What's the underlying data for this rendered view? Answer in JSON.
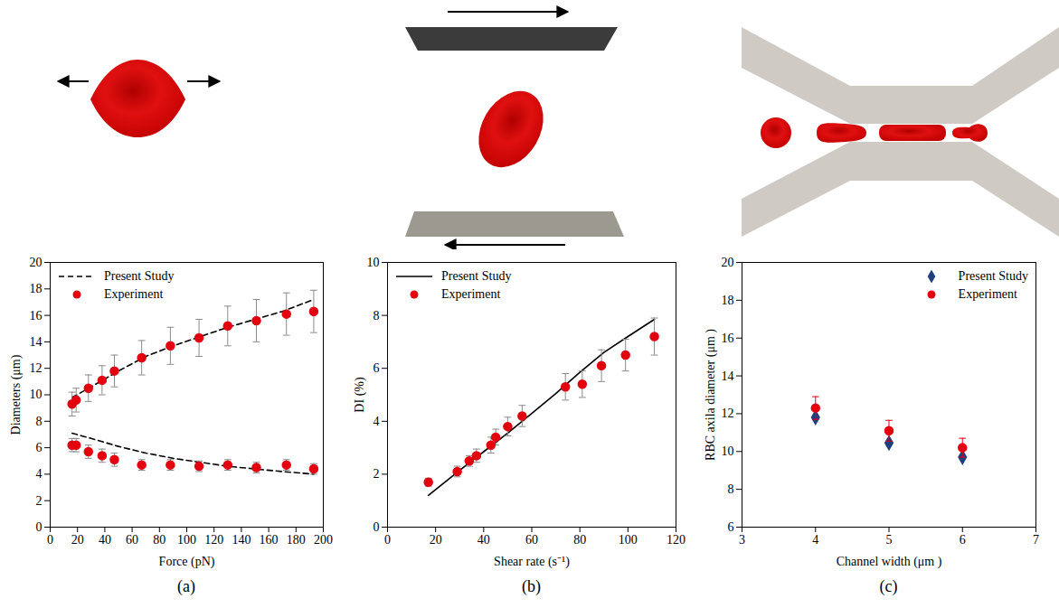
{
  "chart_data": [
    {
      "type": "scatter",
      "panel_label": "(a)",
      "x_label": "Force (pN)",
      "y_label": "Diameters (μm)",
      "xlim": [
        0,
        200
      ],
      "xticks": [
        0,
        20,
        40,
        60,
        80,
        100,
        120,
        140,
        160,
        180,
        200
      ],
      "ylim": [
        0,
        20
      ],
      "yticks": [
        0,
        2,
        4,
        6,
        8,
        10,
        12,
        14,
        16,
        18,
        20
      ],
      "grid": false,
      "legend": "upper left",
      "series": [
        {
          "name": "Present Study",
          "type": "line",
          "line_style": "dashed",
          "color": "#000000",
          "x": [
            16,
            30,
            50,
            70,
            90,
            110,
            130,
            150,
            170,
            193,
            null,
            16,
            30,
            50,
            70,
            90,
            110,
            130,
            150,
            170,
            193
          ],
          "values": [
            9.8,
            10.6,
            11.8,
            12.9,
            13.7,
            14.4,
            15.1,
            15.7,
            16.3,
            17.2,
            null,
            7.1,
            6.7,
            6.1,
            5.6,
            5.2,
            4.9,
            4.6,
            4.4,
            4.2,
            4.0
          ]
        },
        {
          "name": "Experiment",
          "type": "scatter",
          "marker": "circle",
          "color": "#e3000f",
          "x": [
            16,
            19,
            28,
            38,
            47,
            67,
            88,
            109,
            130,
            151,
            173,
            193,
            16,
            19,
            28,
            38,
            47,
            67,
            88,
            109,
            130,
            151,
            173,
            193
          ],
          "values": [
            9.3,
            9.6,
            10.5,
            11.1,
            11.8,
            12.8,
            13.7,
            14.3,
            15.2,
            15.6,
            16.1,
            16.3,
            6.2,
            6.2,
            5.7,
            5.4,
            5.1,
            4.7,
            4.7,
            4.6,
            4.7,
            4.5,
            4.7,
            4.4
          ],
          "errors": [
            0.9,
            0.9,
            1.0,
            1.1,
            1.2,
            1.3,
            1.4,
            1.4,
            1.5,
            1.6,
            1.6,
            1.6,
            0.5,
            0.5,
            0.5,
            0.5,
            0.5,
            0.4,
            0.4,
            0.4,
            0.4,
            0.4,
            0.4,
            0.4
          ]
        }
      ]
    },
    {
      "type": "scatter",
      "panel_label": "(b)",
      "x_label": "Shear rate (s⁻¹)",
      "y_label": "DI (%)",
      "xlim": [
        0,
        120
      ],
      "xticks": [
        0,
        20,
        40,
        60,
        80,
        100,
        120
      ],
      "ylim": [
        0,
        10
      ],
      "yticks": [
        0,
        2,
        4,
        6,
        8,
        10
      ],
      "grid": false,
      "legend": "upper left",
      "series": [
        {
          "name": "Present Study",
          "type": "line",
          "line_style": "solid",
          "color": "#000000",
          "x": [
            17,
            30,
            40,
            50,
            60,
            70,
            80,
            90,
            100,
            111
          ],
          "values": [
            1.2,
            2.15,
            2.85,
            3.55,
            4.3,
            5.05,
            5.85,
            6.6,
            7.2,
            7.85
          ]
        },
        {
          "name": "Experiment",
          "type": "scatter",
          "marker": "circle",
          "color": "#e3000f",
          "x": [
            17,
            29,
            34,
            37,
            43,
            45,
            50,
            56,
            74,
            81,
            89,
            99,
            111
          ],
          "values": [
            1.7,
            2.1,
            2.5,
            2.7,
            3.1,
            3.4,
            3.8,
            4.2,
            5.3,
            5.4,
            6.1,
            6.5,
            7.2
          ],
          "errors": [
            0.15,
            0.2,
            0.2,
            0.25,
            0.3,
            0.3,
            0.35,
            0.4,
            0.5,
            0.5,
            0.6,
            0.6,
            0.7
          ]
        }
      ]
    },
    {
      "type": "scatter",
      "panel_label": "(c)",
      "x_label": "Channel width (μm )",
      "y_label": "RBC axila diameter (μm )",
      "xlim": [
        3,
        7
      ],
      "xticks": [
        3,
        4,
        5,
        6,
        7
      ],
      "ylim": [
        6,
        20
      ],
      "yticks": [
        6,
        8,
        10,
        12,
        14,
        16,
        18,
        20
      ],
      "grid": false,
      "legend": "upper right",
      "series": [
        {
          "name": "Present Study",
          "type": "scatter",
          "marker": "diamond",
          "color": "#1f3f7f",
          "x": [
            4,
            5,
            6
          ],
          "values": [
            11.8,
            10.45,
            9.7
          ]
        },
        {
          "name": "Experiment",
          "type": "scatter",
          "marker": "circle",
          "color": "#e3000f",
          "x": [
            4,
            5,
            6
          ],
          "values": [
            12.3,
            11.1,
            10.2
          ],
          "errors": [
            0.6,
            0.55,
            0.5
          ]
        }
      ]
    }
  ]
}
